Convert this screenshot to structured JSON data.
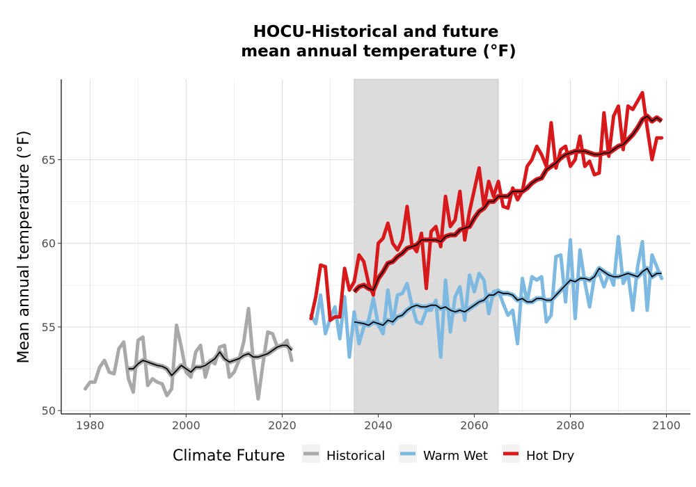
{
  "chart_data": {
    "type": "line",
    "title": "HOCU-Historical and future",
    "subtitle": "mean annual temperature (°F)",
    "xlabel": "",
    "ylabel": "Mean annual temperature (°F)",
    "xlim": [
      1974,
      2105
    ],
    "ylim": [
      49.8,
      69.8
    ],
    "x_ticks": [
      1980,
      2000,
      2020,
      2040,
      2060,
      2080,
      2100
    ],
    "y_ticks": [
      50,
      55,
      60,
      65
    ],
    "grid": true,
    "reference_period": [
      2035,
      2065
    ],
    "legend": {
      "title": "Climate Future",
      "position": "bottom",
      "entries": [
        "Historical",
        "Warm Wet",
        "Hot Dry"
      ]
    },
    "series": [
      {
        "name": "Historical",
        "color": "#a9a9a9",
        "x": [
          1979,
          1980,
          1981,
          1982,
          1983,
          1984,
          1985,
          1986,
          1987,
          1988,
          1989,
          1990,
          1991,
          1992,
          1993,
          1994,
          1995,
          1996,
          1997,
          1998,
          1999,
          2000,
          2001,
          2002,
          2003,
          2004,
          2005,
          2006,
          2007,
          2008,
          2009,
          2010,
          2011,
          2012,
          2013,
          2014,
          2015,
          2016,
          2017,
          2018,
          2019,
          2020,
          2021,
          2022
        ],
        "values": [
          51.3,
          51.7,
          51.7,
          52.6,
          53.0,
          52.3,
          52.2,
          53.7,
          54.1,
          51.9,
          51.1,
          54.2,
          54.4,
          51.5,
          51.9,
          51.7,
          51.6,
          50.9,
          51.3,
          55.1,
          53.8,
          52.3,
          52.0,
          53.5,
          53.9,
          52.0,
          53.0,
          52.8,
          53.8,
          53.9,
          52.0,
          52.3,
          53.0,
          54.1,
          56.1,
          52.9,
          50.7,
          52.8,
          54.7,
          54.6,
          53.8,
          53.9,
          54.2,
          53.0
        ],
        "smooth_x": [
          1988,
          1989,
          1990,
          1991,
          1992,
          1993,
          1994,
          1995,
          1996,
          1997,
          1998,
          1999,
          2000,
          2001,
          2002,
          2003,
          2004,
          2005,
          2006,
          2007,
          2008,
          2009,
          2010,
          2011,
          2012,
          2013,
          2014,
          2015,
          2016,
          2017,
          2018,
          2019,
          2020,
          2021,
          2022
        ],
        "smooth_values": [
          52.5,
          52.5,
          52.8,
          53.0,
          52.9,
          52.8,
          52.7,
          52.65,
          52.5,
          52.1,
          52.4,
          52.7,
          52.5,
          52.3,
          52.6,
          52.6,
          52.7,
          52.9,
          53.1,
          53.5,
          53.1,
          52.9,
          53.0,
          53.1,
          53.3,
          53.4,
          53.2,
          53.2,
          53.3,
          53.4,
          53.6,
          53.8,
          53.9,
          53.9,
          53.6
        ]
      },
      {
        "name": "Warm Wet",
        "color": "#7db9e0",
        "x": [
          2026,
          2027,
          2028,
          2029,
          2030,
          2031,
          2032,
          2033,
          2034,
          2035,
          2036,
          2037,
          2038,
          2039,
          2040,
          2041,
          2042,
          2043,
          2044,
          2045,
          2046,
          2047,
          2048,
          2049,
          2050,
          2051,
          2052,
          2053,
          2054,
          2055,
          2056,
          2057,
          2058,
          2059,
          2060,
          2061,
          2062,
          2063,
          2064,
          2065,
          2066,
          2067,
          2068,
          2069,
          2070,
          2071,
          2072,
          2073,
          2074,
          2075,
          2076,
          2077,
          2078,
          2079,
          2080,
          2081,
          2082,
          2083,
          2084,
          2085,
          2086,
          2087,
          2088,
          2089,
          2090,
          2091,
          2092,
          2093,
          2094,
          2095,
          2096,
          2097,
          2098,
          2099
        ],
        "values": [
          55.7,
          55.2,
          56.9,
          54.6,
          55.5,
          56.2,
          54.3,
          56.8,
          53.2,
          55.9,
          54.0,
          55.0,
          55.4,
          56.7,
          55.1,
          54.6,
          57.2,
          55.2,
          56.9,
          57.0,
          57.6,
          56.3,
          55.3,
          55.2,
          56.0,
          56.0,
          56.6,
          53.2,
          57.8,
          54.7,
          56.8,
          57.4,
          55.4,
          58.1,
          57.1,
          58.2,
          57.8,
          55.8,
          57.1,
          57.2,
          56.4,
          55.7,
          56.0,
          54.0,
          57.9,
          56.5,
          58.0,
          57.8,
          58.0,
          55.3,
          55.7,
          59.2,
          59.3,
          56.5,
          60.2,
          55.5,
          59.6,
          57.7,
          56.2,
          58.0,
          58.2,
          57.4,
          58.2,
          57.5,
          60.4,
          57.6,
          58.2,
          56.0,
          58.6,
          60.1,
          56.0,
          59.3,
          58.6,
          57.9
        ],
        "smooth_x": [
          2035,
          2036,
          2037,
          2038,
          2039,
          2040,
          2041,
          2042,
          2043,
          2044,
          2045,
          2046,
          2047,
          2048,
          2049,
          2050,
          2051,
          2052,
          2053,
          2054,
          2055,
          2056,
          2057,
          2058,
          2059,
          2060,
          2061,
          2062,
          2063,
          2064,
          2065,
          2066,
          2067,
          2068,
          2069,
          2070,
          2071,
          2072,
          2073,
          2074,
          2075,
          2076,
          2077,
          2078,
          2079,
          2080,
          2081,
          2082,
          2083,
          2084,
          2085,
          2086,
          2087,
          2088,
          2089,
          2090,
          2091,
          2092,
          2093,
          2094,
          2095,
          2096,
          2097,
          2098,
          2099
        ],
        "smooth_values": [
          55.3,
          55.25,
          55.2,
          55.1,
          55.3,
          55.2,
          55.1,
          55.4,
          55.3,
          55.6,
          55.7,
          56.0,
          56.2,
          56.3,
          56.2,
          56.2,
          56.3,
          56.3,
          56.1,
          56.2,
          56.0,
          55.9,
          56.0,
          55.9,
          56.1,
          56.3,
          56.5,
          56.6,
          56.9,
          56.9,
          57.1,
          57.0,
          57.0,
          56.9,
          56.6,
          56.7,
          56.5,
          56.5,
          56.7,
          56.7,
          56.6,
          56.6,
          56.9,
          57.2,
          57.5,
          57.8,
          57.7,
          57.9,
          57.9,
          57.8,
          58.0,
          58.5,
          58.3,
          58.1,
          58.0,
          58.0,
          58.1,
          58.2,
          58.1,
          58.0,
          58.3,
          58.5,
          58.0,
          58.2,
          58.2
        ],
        "smooth_color": "#000000"
      },
      {
        "name": "Hot Dry",
        "color": "#d7191c",
        "x": [
          2026,
          2027,
          2028,
          2029,
          2030,
          2031,
          2032,
          2033,
          2034,
          2035,
          2036,
          2037,
          2038,
          2039,
          2040,
          2041,
          2042,
          2043,
          2044,
          2045,
          2046,
          2047,
          2048,
          2049,
          2050,
          2051,
          2052,
          2053,
          2054,
          2055,
          2056,
          2057,
          2058,
          2059,
          2060,
          2061,
          2062,
          2063,
          2064,
          2065,
          2066,
          2067,
          2068,
          2069,
          2070,
          2071,
          2072,
          2073,
          2074,
          2075,
          2076,
          2077,
          2078,
          2079,
          2080,
          2081,
          2082,
          2083,
          2084,
          2085,
          2086,
          2087,
          2088,
          2089,
          2090,
          2091,
          2092,
          2093,
          2094,
          2095,
          2096,
          2097,
          2098,
          2099
        ],
        "values": [
          55.5,
          56.8,
          58.7,
          58.6,
          55.4,
          55.6,
          55.6,
          58.5,
          57.2,
          57.7,
          59.3,
          58.9,
          57.6,
          56.9,
          60.0,
          60.3,
          61.2,
          60.0,
          59.6,
          60.2,
          62.2,
          59.9,
          59.5,
          60.6,
          57.3,
          60.7,
          61.0,
          59.8,
          62.8,
          61.0,
          61.4,
          63.1,
          60.2,
          61.9,
          63.2,
          64.5,
          62.2,
          63.7,
          62.8,
          63.7,
          62.2,
          62.1,
          63.3,
          62.6,
          63.1,
          64.6,
          65.0,
          65.8,
          65.3,
          64.6,
          67.2,
          64.5,
          65.6,
          65.8,
          64.6,
          65.0,
          66.4,
          64.6,
          64.9,
          64.1,
          64.2,
          67.8,
          65.2,
          67.6,
          68.2,
          65.6,
          68.2,
          68.0,
          68.5,
          69.0,
          66.9,
          65.0,
          66.3,
          66.3
        ],
        "smooth_x": [
          2035,
          2036,
          2037,
          2038,
          2039,
          2040,
          2041,
          2042,
          2043,
          2044,
          2045,
          2046,
          2047,
          2048,
          2049,
          2050,
          2051,
          2052,
          2053,
          2054,
          2055,
          2056,
          2057,
          2058,
          2059,
          2060,
          2061,
          2062,
          2063,
          2064,
          2065,
          2066,
          2067,
          2068,
          2069,
          2070,
          2071,
          2072,
          2073,
          2074,
          2075,
          2076,
          2077,
          2078,
          2079,
          2080,
          2081,
          2082,
          2083,
          2084,
          2085,
          2086,
          2087,
          2088,
          2089,
          2090,
          2091,
          2092,
          2093,
          2094,
          2095,
          2096,
          2097,
          2098,
          2099
        ],
        "smooth_values": [
          57.1,
          57.4,
          57.5,
          57.3,
          57.2,
          57.9,
          58.3,
          58.8,
          58.9,
          59.2,
          59.4,
          59.7,
          59.8,
          59.9,
          60.2,
          60.2,
          60.2,
          60.2,
          60.1,
          60.4,
          60.5,
          60.5,
          60.8,
          60.9,
          61.0,
          61.5,
          61.9,
          62.1,
          62.5,
          62.5,
          62.8,
          62.8,
          62.8,
          63.1,
          63.1,
          63.1,
          63.3,
          63.6,
          63.8,
          63.9,
          64.4,
          64.6,
          64.8,
          65.1,
          65.3,
          65.4,
          65.5,
          65.5,
          65.5,
          65.4,
          65.3,
          65.3,
          65.4,
          65.4,
          65.6,
          65.8,
          65.9,
          66.2,
          66.5,
          66.9,
          67.4,
          67.6,
          67.3,
          67.5,
          67.3
        ],
        "smooth_color": "#000000"
      }
    ]
  }
}
